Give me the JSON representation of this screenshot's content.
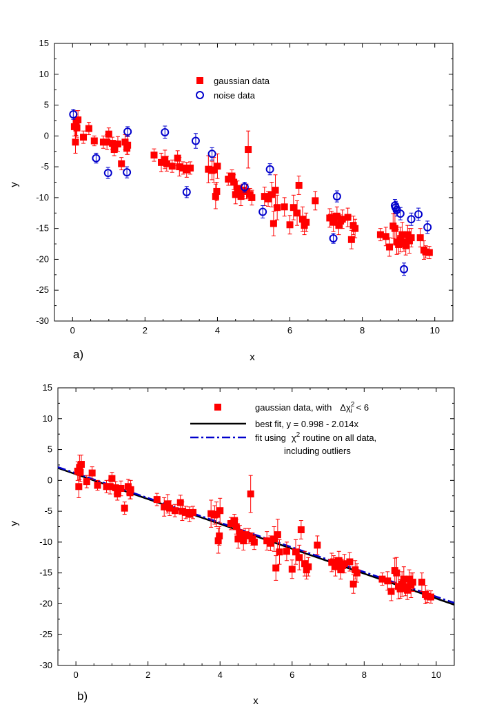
{
  "chart_data": [
    {
      "type": "scatter",
      "panel_label": "a)",
      "xlabel": "x",
      "ylabel": "y",
      "xlim": [
        -0.5,
        10.5
      ],
      "ylim": [
        -30,
        15
      ],
      "xticks": [
        0,
        2,
        4,
        6,
        8,
        10
      ],
      "yticks": [
        15,
        10,
        5,
        0,
        -5,
        -10,
        -15,
        -20,
        -25,
        -30
      ],
      "legend_position": "top-center",
      "series": [
        {
          "name": "gaussian data",
          "marker": "filled-square",
          "color": "#ff0000",
          "points": [
            [
              0.05,
              1.5,
              1.5
            ],
            [
              0.08,
              -1.0,
              1.8
            ],
            [
              0.1,
              2.1,
              2.0
            ],
            [
              0.12,
              1.3,
              1.5
            ],
            [
              0.15,
              2.6,
              1.5
            ],
            [
              0.3,
              -0.2,
              1.0
            ],
            [
              0.45,
              1.2,
              1.0
            ],
            [
              0.6,
              -0.8,
              0.8
            ],
            [
              0.85,
              -1.0,
              1.0
            ],
            [
              0.95,
              -1.0,
              1.2
            ],
            [
              1.0,
              0.3,
              1.0
            ],
            [
              1.1,
              -1.2,
              1.0
            ],
            [
              1.15,
              -2.2,
              1.0
            ],
            [
              1.25,
              -1.3,
              1.2
            ],
            [
              1.35,
              -4.5,
              1.0
            ],
            [
              1.45,
              -1.0,
              1.2
            ],
            [
              1.5,
              -2.0,
              1.0
            ],
            [
              1.52,
              -1.5,
              1.5
            ],
            [
              2.25,
              -3.1,
              1.0
            ],
            [
              2.45,
              -4.3,
              1.5
            ],
            [
              2.55,
              -3.8,
              1.5
            ],
            [
              2.6,
              -4.5,
              1.2
            ],
            [
              2.75,
              -4.9,
              1.0
            ],
            [
              2.9,
              -3.6,
              1.2
            ],
            [
              2.95,
              -5.0,
              1.5
            ],
            [
              3.05,
              -5.2,
              1.0
            ],
            [
              3.15,
              -5.5,
              1.2
            ],
            [
              3.25,
              -5.2,
              1.0
            ],
            [
              3.75,
              -5.4,
              2.2
            ],
            [
              3.85,
              -5.6,
              1.5
            ],
            [
              3.9,
              -5.5,
              2.0
            ],
            [
              3.95,
              -9.8,
              2.0
            ],
            [
              3.98,
              -9.0,
              1.5
            ],
            [
              4.0,
              -4.9,
              2.0
            ],
            [
              4.3,
              -7.0,
              1.0
            ],
            [
              4.4,
              -6.5,
              1.0
            ],
            [
              4.45,
              -7.5,
              1.2
            ],
            [
              4.5,
              -9.5,
              1.5
            ],
            [
              4.55,
              -8.5,
              1.2
            ],
            [
              4.6,
              -9.0,
              1.0
            ],
            [
              4.65,
              -9.8,
              1.5
            ],
            [
              4.7,
              -8.8,
              1.0
            ],
            [
              4.8,
              -9.0,
              1.2
            ],
            [
              4.85,
              -2.2,
              3.0
            ],
            [
              4.9,
              -9.5,
              1.0
            ],
            [
              4.95,
              -10.0,
              1.2
            ],
            [
              5.3,
              -9.8,
              1.5
            ],
            [
              5.4,
              -10.2,
              1.2
            ],
            [
              5.5,
              -9.5,
              2.0
            ],
            [
              5.55,
              -14.2,
              2.0
            ],
            [
              5.6,
              -8.8,
              2.5
            ],
            [
              5.65,
              -11.6,
              2.0
            ],
            [
              5.85,
              -11.5,
              1.5
            ],
            [
              6.0,
              -14.4,
              1.5
            ],
            [
              6.1,
              -11.6,
              2.0
            ],
            [
              6.2,
              -12.5,
              2.0
            ],
            [
              6.25,
              -8.0,
              1.5
            ],
            [
              6.35,
              -13.5,
              2.0
            ],
            [
              6.4,
              -14.5,
              1.5
            ],
            [
              6.45,
              -14.0,
              1.5
            ],
            [
              6.7,
              -10.5,
              1.5
            ],
            [
              7.1,
              -13.3,
              1.5
            ],
            [
              7.15,
              -13.2,
              1.0
            ],
            [
              7.2,
              -14.0,
              1.5
            ],
            [
              7.3,
              -13.0,
              1.5
            ],
            [
              7.35,
              -14.5,
              1.5
            ],
            [
              7.4,
              -13.8,
              1.0
            ],
            [
              7.45,
              -13.5,
              1.5
            ],
            [
              7.6,
              -13.2,
              1.5
            ],
            [
              7.7,
              -16.8,
              1.5
            ],
            [
              7.75,
              -14.5,
              1.5
            ],
            [
              7.8,
              -15.0,
              1.5
            ],
            [
              8.5,
              -16.0,
              1.0
            ],
            [
              8.65,
              -16.3,
              1.5
            ],
            [
              8.75,
              -18.0,
              1.5
            ],
            [
              8.85,
              -14.6,
              2.0
            ],
            [
              8.9,
              -15.0,
              2.5
            ],
            [
              8.95,
              -17.2,
              2.0
            ],
            [
              9.0,
              -17.6,
              1.5
            ],
            [
              9.05,
              -16.8,
              2.0
            ],
            [
              9.1,
              -16.0,
              2.0
            ],
            [
              9.15,
              -17.2,
              1.5
            ],
            [
              9.2,
              -17.8,
              1.5
            ],
            [
              9.25,
              -16.0,
              1.5
            ],
            [
              9.3,
              -17.0,
              2.0
            ],
            [
              9.35,
              -16.5,
              1.5
            ],
            [
              9.6,
              -16.5,
              1.5
            ],
            [
              9.7,
              -18.5,
              1.5
            ],
            [
              9.75,
              -18.8,
              1.0
            ],
            [
              9.85,
              -18.9,
              1.0
            ]
          ]
        },
        {
          "name": "noise data",
          "marker": "open-circle",
          "color": "#0000cc",
          "points": [
            [
              0.02,
              3.5,
              0.8
            ],
            [
              0.65,
              -3.6,
              0.8
            ],
            [
              0.98,
              -6.0,
              0.9
            ],
            [
              1.5,
              -5.9,
              0.9
            ],
            [
              1.52,
              0.7,
              0.8
            ],
            [
              2.55,
              0.6,
              1.0
            ],
            [
              3.15,
              -9.1,
              0.9
            ],
            [
              3.4,
              -0.8,
              1.2
            ],
            [
              3.85,
              -2.9,
              1.0
            ],
            [
              4.75,
              -8.3,
              0.8
            ],
            [
              5.25,
              -12.3,
              1.0
            ],
            [
              5.45,
              -5.4,
              0.9
            ],
            [
              7.2,
              -16.6,
              0.8
            ],
            [
              7.3,
              -9.8,
              0.9
            ],
            [
              8.9,
              -11.3,
              1.0
            ],
            [
              8.92,
              -11.6,
              1.0
            ],
            [
              8.95,
              -12.0,
              1.0
            ],
            [
              9.05,
              -12.6,
              1.0
            ],
            [
              9.15,
              -21.6,
              1.0
            ],
            [
              9.35,
              -13.5,
              1.0
            ],
            [
              9.55,
              -12.7,
              1.0
            ],
            [
              9.8,
              -14.8,
              1.0
            ]
          ]
        }
      ]
    },
    {
      "type": "scatter",
      "panel_label": "b)",
      "xlabel": "x",
      "ylabel": "y",
      "xlim": [
        -0.5,
        10.5
      ],
      "ylim": [
        -30,
        15
      ],
      "xticks": [
        0,
        2,
        4,
        6,
        8,
        10
      ],
      "yticks": [
        15,
        10,
        5,
        0,
        -5,
        -10,
        -15,
        -20,
        -25,
        -30
      ],
      "legend_position": "top-right",
      "series": [
        {
          "name": "gaussian data, with",
          "name_suffix": "Δχ",
          "name_superscript": "2",
          "name_subscript": "i",
          "name_tail": "< 6",
          "marker": "filled-square",
          "color": "#ff0000",
          "points": "same as panel a gaussian data"
        },
        {
          "name": "best fit, y = 0.998 - 2.014x",
          "type": "line",
          "style": "solid",
          "color": "#000000",
          "intercept": 0.998,
          "slope": -2.014
        },
        {
          "name": "fit using",
          "name_chi": "χ",
          "name_superscript": "2",
          "name_tail": "routine on all data,",
          "name_line2": "including outliers",
          "type": "line",
          "style": "dash-dot",
          "color": "#0000cc",
          "intercept": 1.15,
          "slope": -2.0
        }
      ]
    }
  ]
}
